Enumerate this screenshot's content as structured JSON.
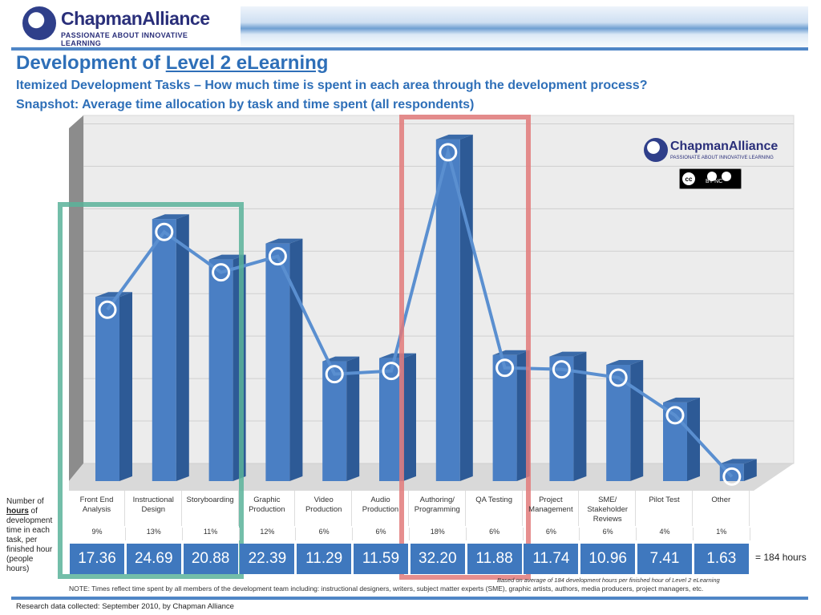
{
  "header": {
    "logo_name": "ChapmanAlliance",
    "logo_tagline": "PASSIONATE ABOUT INNOVATIVE LEARNING"
  },
  "title_prefix": "Development of ",
  "title_link": "Level 2 eLearning",
  "subtitle1": "Itemized Development Tasks – How much time is spent in each area through the development process?",
  "subtitle2": "Snapshot: Average time allocation by task and time spent (all respondents)",
  "watermark": {
    "name": "ChapmanAlliance",
    "tagline": "PASSIONATE ABOUT INNOVATIVE LEARNING",
    "license": "BY NC"
  },
  "ylabel_parts": {
    "pre": "Number of ",
    "bold": "hours",
    "post": " of development time in each task, per finished hour (people hours)"
  },
  "total_label": "= 184 hours",
  "basis_note": "Based on average of 184 development hours per finished hour of Level 2 eLearning",
  "note": "NOTE: Times reflect time spent by all members of the development team including: instructional designers, writers, subject matter experts (SME), graphic artists, authors, media producers, project managers, etc.",
  "footer": "Research data collected: September 2010, by Chapman Alliance",
  "colors": {
    "bar": "#4a7fc4",
    "bar_side": "#2d5a96",
    "line": "#5a8fd0",
    "green_box": "#5ab39a",
    "red_box": "#e27a7a",
    "value_bg": "#3f78be"
  },
  "chart_data": {
    "type": "bar",
    "categories": [
      "Front End Analysis",
      "Instructional Design",
      "Storyboarding",
      "Graphic Production",
      "Video Production",
      "Audio Production",
      "Authoring/ Programming",
      "QA Testing",
      "Project Management",
      "SME/ Stakeholder Reviews",
      "Pilot Test",
      "Other"
    ],
    "values": [
      17.36,
      24.69,
      20.88,
      22.39,
      11.29,
      11.59,
      32.2,
      11.88,
      11.74,
      10.96,
      7.41,
      1.63
    ],
    "value_labels": [
      "17.36",
      "24.69",
      "20.88",
      "22.39",
      "11.29",
      "11.59",
      "32.20",
      "11.88",
      "11.74",
      "10.96",
      "7.41",
      "1.63"
    ],
    "percentages": [
      "9%",
      "13%",
      "11%",
      "12%",
      "6%",
      "6%",
      "18%",
      "6%",
      "6%",
      "6%",
      "4%",
      "1%"
    ],
    "line_values": [
      17.36,
      24.69,
      20.88,
      22.39,
      11.29,
      11.59,
      32.2,
      11.88,
      11.74,
      10.96,
      7.41,
      1.63
    ],
    "ylim": [
      0,
      34
    ],
    "grid": true
  }
}
